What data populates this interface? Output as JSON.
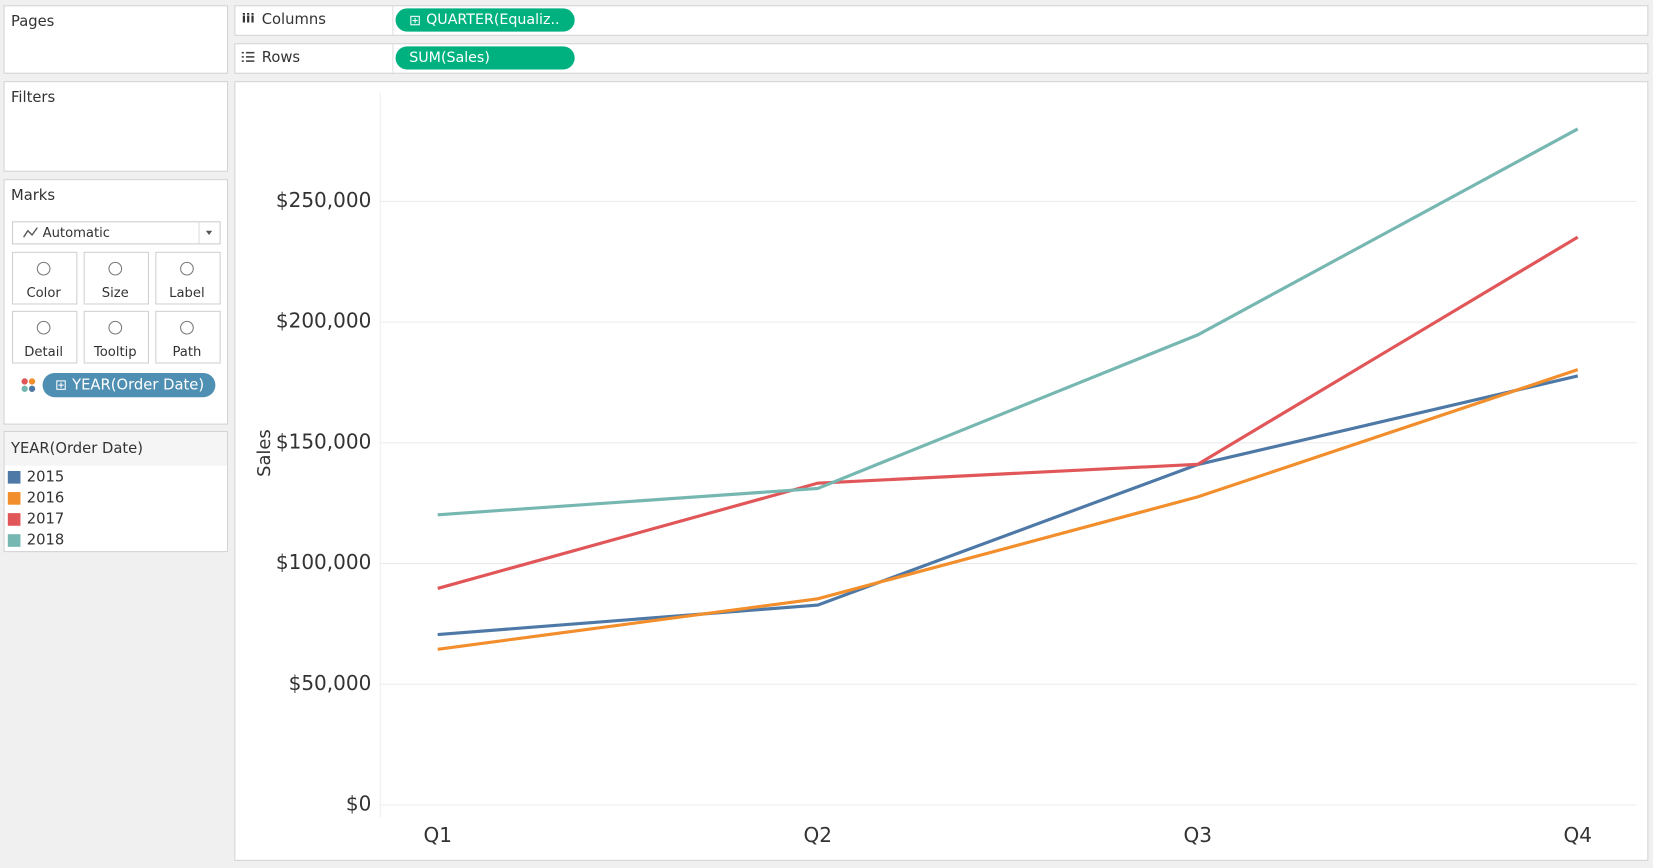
{
  "pages": {
    "title": "Pages"
  },
  "filters": {
    "title": "Filters"
  },
  "shelves": {
    "columns": {
      "label": "Columns",
      "pill": "QUARTER(Equaliz.."
    },
    "rows": {
      "label": "Rows",
      "pill": "SUM(Sales)"
    }
  },
  "marks": {
    "title": "Marks",
    "mark_type": "Automatic",
    "buttons": [
      "Color",
      "Size",
      "Label",
      "Detail",
      "Tooltip",
      "Path"
    ],
    "pill": "YEAR(Order Date)"
  },
  "chart_data": {
    "type": "line",
    "legend_title": "YEAR(Order Date)",
    "y_label": "Sales",
    "categories": [
      "Q1",
      "Q2",
      "Q3",
      "Q4"
    ],
    "series": [
      {
        "name": "2015",
        "color": "#4e79a7",
        "values": [
          70600,
          82800,
          141000,
          177700
        ]
      },
      {
        "name": "2016",
        "color": "#f28e2b",
        "values": [
          64500,
          85400,
          127600,
          180300
        ]
      },
      {
        "name": "2017",
        "color": "#e15759",
        "values": [
          89700,
          133300,
          141100,
          235200
        ]
      },
      {
        "name": "2018",
        "color": "#76b7b2",
        "values": [
          120200,
          131100,
          194700,
          280000
        ]
      }
    ],
    "ylim": [
      0,
      295000
    ],
    "yticks": [
      {
        "value": 0,
        "label": "$0"
      },
      {
        "value": 50000,
        "label": "$50,000"
      },
      {
        "value": 100000,
        "label": "$100,000"
      },
      {
        "value": 150000,
        "label": "$150,000"
      },
      {
        "value": 200000,
        "label": "$200,000"
      },
      {
        "value": 250000,
        "label": "$250,000"
      }
    ],
    "grid": true
  }
}
